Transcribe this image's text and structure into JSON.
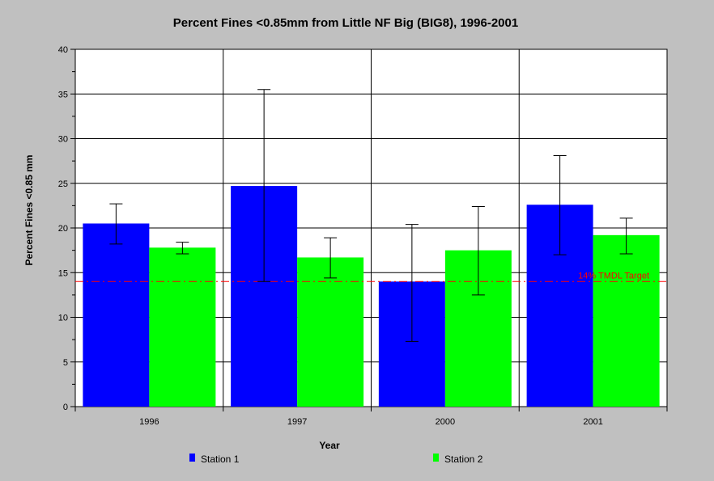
{
  "chart_data": {
    "type": "bar",
    "title": "Percent Fines <0.85mm from Little NF Big (BIG8), 1996-2001",
    "xlabel": "Year",
    "ylabel": "Percent Fines <0.85 mm",
    "categories": [
      "1996",
      "1997",
      "2000",
      "2001"
    ],
    "ylim": [
      0,
      40
    ],
    "yticks": [
      "0",
      "5",
      "10",
      "15",
      "20",
      "25",
      "30",
      "35",
      "40"
    ],
    "grid": true,
    "legend_position": "bottom",
    "series": [
      {
        "name": "Station 1",
        "color": "#0000ff",
        "values": [
          20.5,
          24.7,
          14.0,
          22.6
        ],
        "error_low": [
          18.2,
          14.0,
          7.3,
          17.0
        ],
        "error_high": [
          22.7,
          35.5,
          20.4,
          28.1
        ]
      },
      {
        "name": "Station 2",
        "color": "#00ff00",
        "values": [
          17.8,
          16.7,
          17.5,
          19.2
        ],
        "error_low": [
          17.1,
          14.4,
          12.5,
          17.1
        ],
        "error_high": [
          18.4,
          18.9,
          22.4,
          21.1
        ]
      }
    ],
    "reference_line": {
      "value": 14,
      "label": "14% TMDL Target",
      "color": "#ff0000"
    }
  }
}
